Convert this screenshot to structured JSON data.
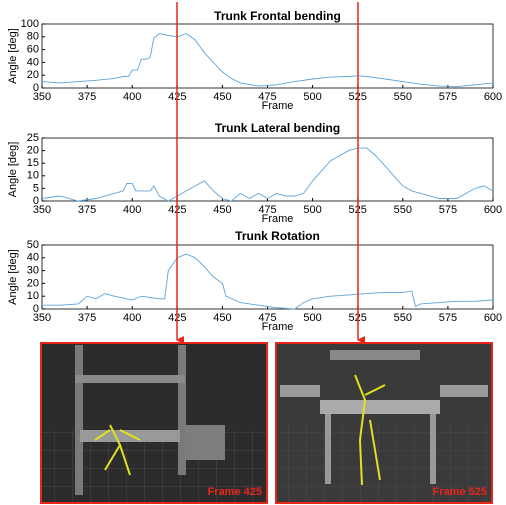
{
  "chart_data": [
    {
      "type": "line",
      "title": "Trunk Frontal bending",
      "x_label": "Frame",
      "y_label": "Angle [deg]",
      "color": "#5da5da",
      "x": [
        350,
        360,
        370,
        380,
        390,
        395,
        398,
        400,
        403,
        405,
        408,
        410,
        412,
        415,
        420,
        425,
        430,
        435,
        440,
        445,
        450,
        455,
        460,
        470,
        480,
        490,
        500,
        510,
        520,
        525,
        530,
        540,
        550,
        560,
        570,
        580,
        590,
        600
      ],
      "values": [
        10,
        8,
        10,
        12,
        15,
        18,
        18,
        28,
        28,
        45,
        45,
        48,
        78,
        85,
        82,
        80,
        85,
        75,
        55,
        40,
        25,
        15,
        8,
        3,
        5,
        10,
        14,
        17,
        18,
        19,
        18,
        14,
        10,
        6,
        3,
        2,
        5,
        8
      ],
      "xlim": [
        350,
        600
      ],
      "ylim": [
        0,
        100
      ],
      "xticks": [
        350,
        375,
        400,
        425,
        450,
        475,
        500,
        525,
        550,
        575,
        600
      ],
      "yticks": [
        0,
        20,
        40,
        60,
        80,
        100
      ]
    },
    {
      "type": "line",
      "title": "Trunk Lateral bending",
      "x_label": "Frame",
      "y_label": "Angle [deg]",
      "color": "#5da5da",
      "x": [
        350,
        360,
        370,
        380,
        390,
        395,
        397,
        400,
        402,
        410,
        412,
        415,
        420,
        425,
        430,
        435,
        440,
        445,
        450,
        455,
        460,
        465,
        470,
        475,
        480,
        485,
        490,
        495,
        500,
        505,
        510,
        515,
        520,
        525,
        530,
        535,
        540,
        545,
        550,
        555,
        560,
        570,
        580,
        590,
        595,
        600
      ],
      "values": [
        1,
        2,
        0,
        1,
        3,
        4,
        7,
        7,
        4,
        4,
        6,
        2,
        0,
        2,
        4,
        6,
        8,
        4,
        1,
        0,
        3,
        1,
        3,
        1,
        3,
        2,
        2,
        3,
        8,
        12,
        16,
        18,
        20,
        21,
        21,
        18,
        14,
        10,
        6,
        4,
        3,
        1,
        1,
        5,
        6,
        4
      ],
      "xlim": [
        350,
        600
      ],
      "ylim": [
        0,
        25
      ],
      "xticks": [
        350,
        375,
        400,
        425,
        450,
        475,
        500,
        525,
        550,
        575,
        600
      ],
      "yticks": [
        0,
        5,
        10,
        15,
        20,
        25
      ]
    },
    {
      "type": "line",
      "title": "Trunk Rotation",
      "x_label": "Frame",
      "y_label": "Angle [deg]",
      "color": "#5da5da",
      "x": [
        350,
        360,
        370,
        375,
        380,
        385,
        390,
        400,
        405,
        410,
        415,
        418,
        420,
        425,
        430,
        435,
        440,
        445,
        450,
        452,
        460,
        470,
        480,
        490,
        495,
        500,
        510,
        520,
        530,
        540,
        550,
        555,
        557,
        560,
        570,
        580,
        590,
        600
      ],
      "values": [
        3,
        3,
        4,
        10,
        8,
        12,
        10,
        7,
        10,
        9,
        8,
        8,
        30,
        40,
        43,
        40,
        33,
        25,
        20,
        10,
        5,
        3,
        1,
        0,
        5,
        8,
        10,
        11,
        12,
        13,
        13,
        14,
        2,
        4,
        5,
        6,
        6,
        7
      ],
      "xlim": [
        350,
        600
      ],
      "ylim": [
        0,
        50
      ],
      "xticks": [
        350,
        375,
        400,
        425,
        450,
        475,
        500,
        525,
        550,
        575,
        600
      ],
      "yticks": [
        0,
        10,
        20,
        30,
        40,
        50
      ]
    }
  ],
  "frame_labels": [
    "Frame 425",
    "Frame 525"
  ]
}
